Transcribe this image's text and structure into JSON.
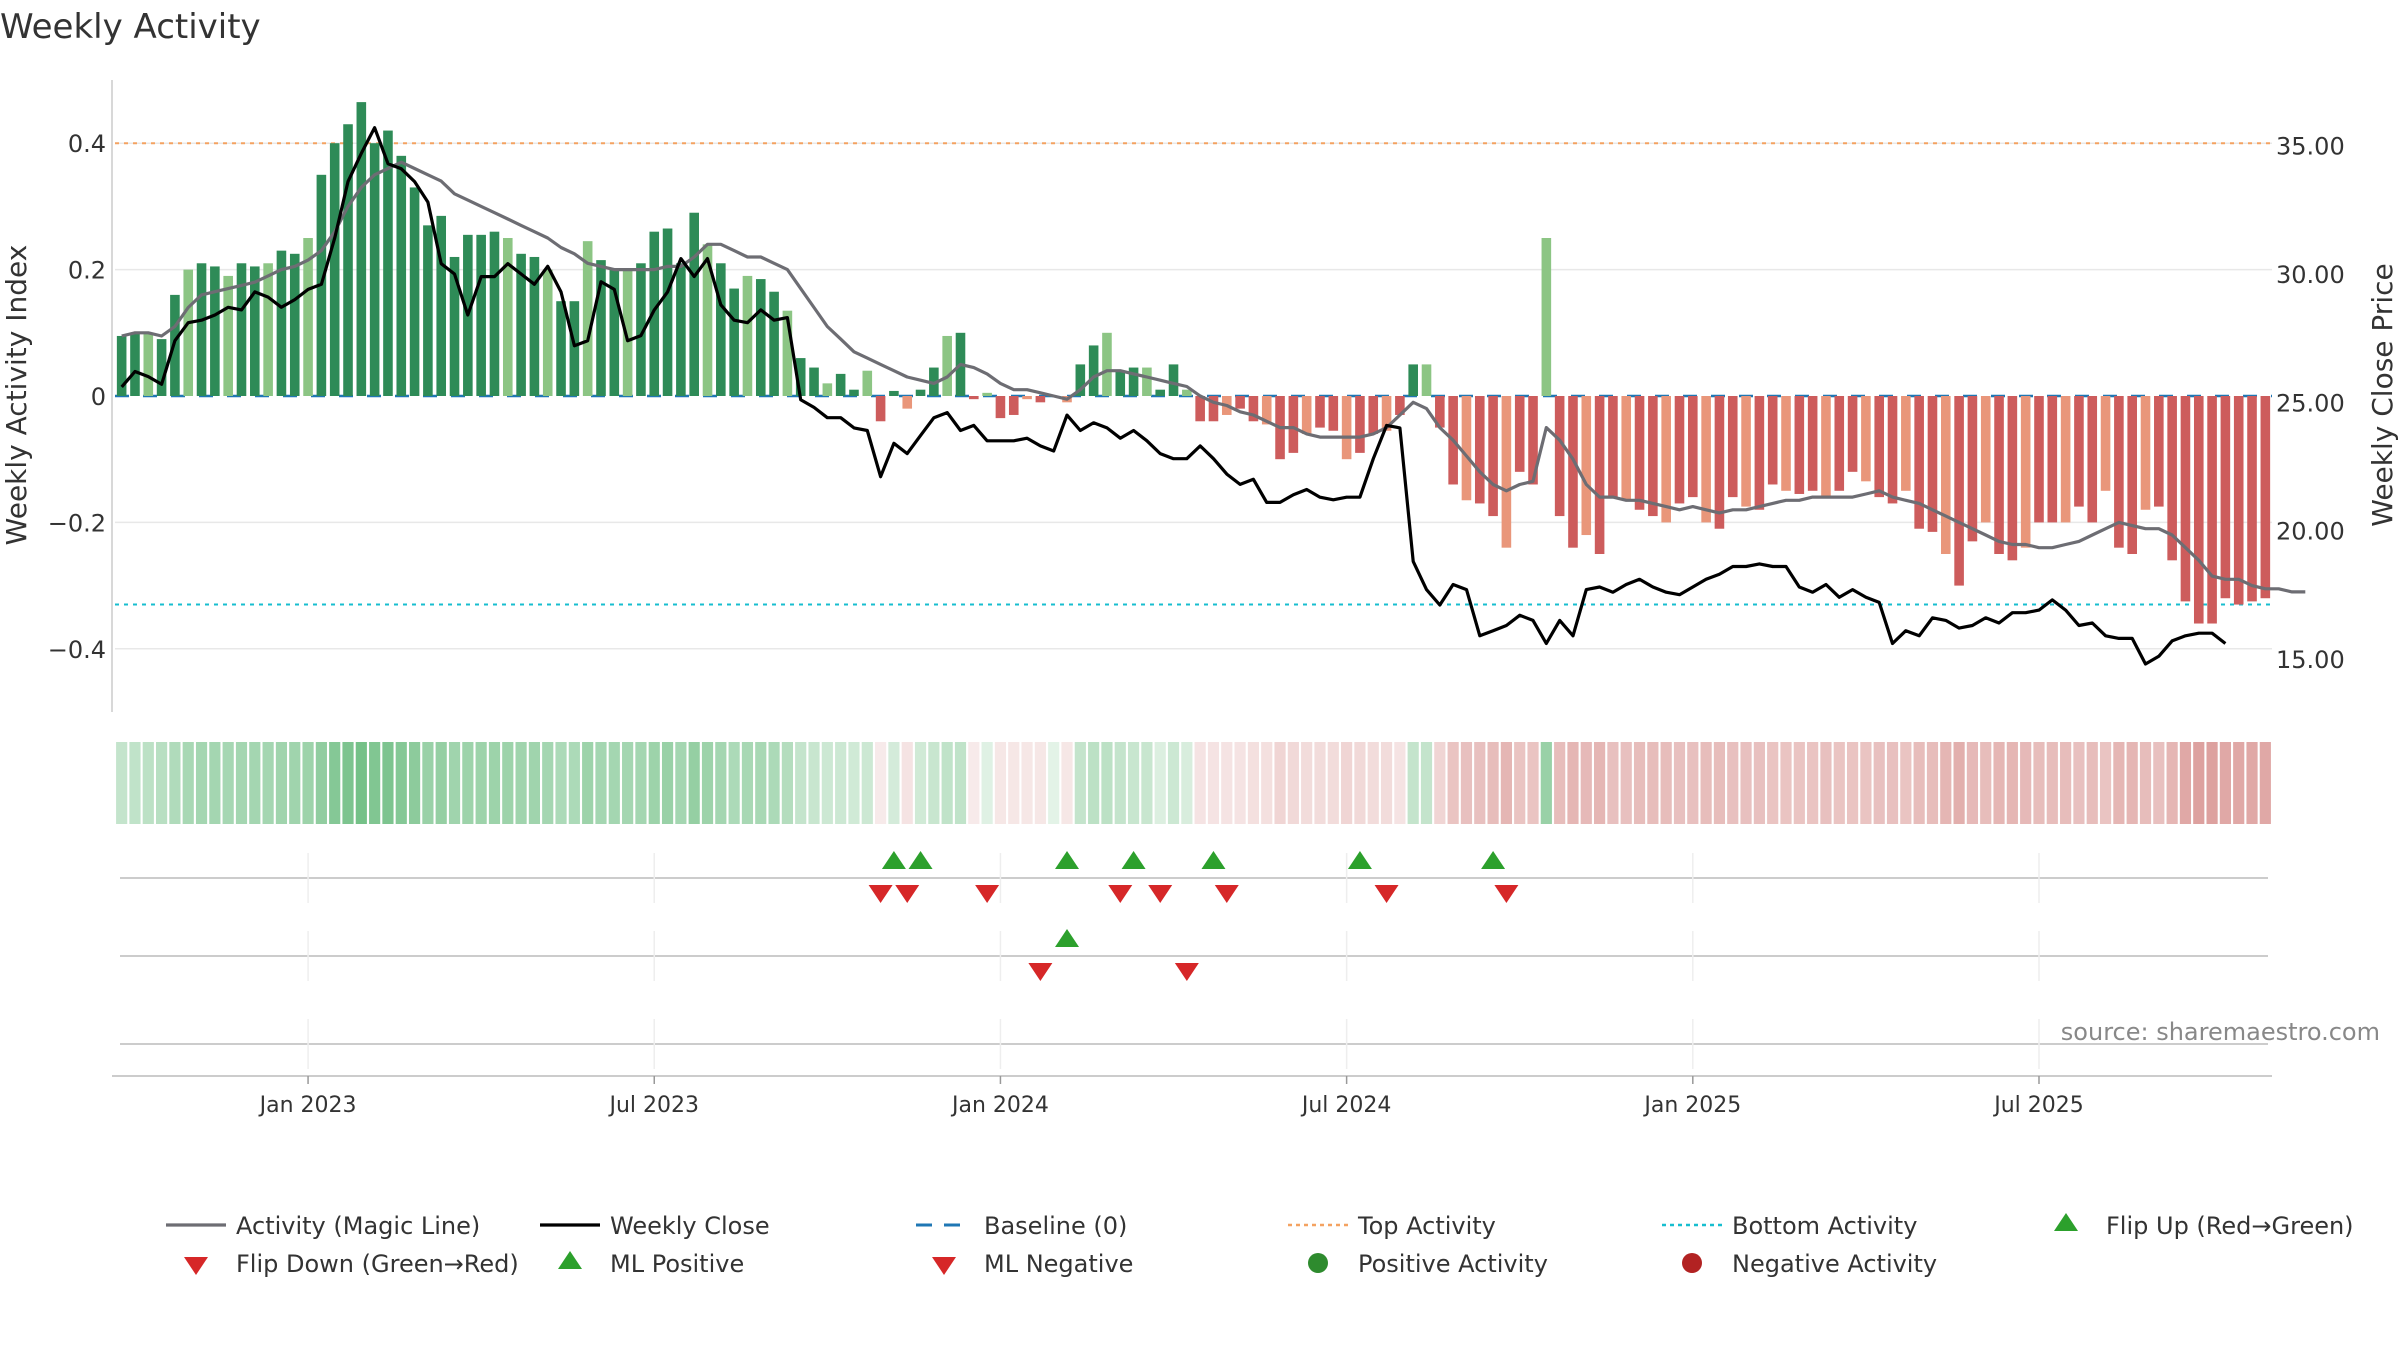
{
  "chart_data": {
    "type": "bar",
    "title": "Weekly Activity",
    "ylabel_left": "Weekly Activity Index",
    "ylabel_right": "Weekly Close Price",
    "source": "source: sharemaestro.com",
    "left_ylim": [
      -0.5,
      0.5
    ],
    "left_ticks": [
      {
        "v": 0.4,
        "label": "0.4"
      },
      {
        "v": 0.2,
        "label": "0.2"
      },
      {
        "v": 0.0,
        "label": "0"
      },
      {
        "v": -0.2,
        "label": "−0.2"
      },
      {
        "v": -0.4,
        "label": "−0.4"
      }
    ],
    "right_ylim": [
      12.93,
      37.56
    ],
    "right_ticks": [
      {
        "v": 35,
        "label": "35.00"
      },
      {
        "v": 30,
        "label": "30.00"
      },
      {
        "v": 25,
        "label": "25.00"
      },
      {
        "v": 20,
        "label": "20.00"
      },
      {
        "v": 15,
        "label": "15.00"
      }
    ],
    "x_ticks": [
      {
        "week": 14.5,
        "label": "Jan 2023"
      },
      {
        "week": 40.5,
        "label": "Jul 2023"
      },
      {
        "week": 66.5,
        "label": "Jan 2024"
      },
      {
        "week": 92.5,
        "label": "Jul 2024"
      },
      {
        "week": 118.5,
        "label": "Jan 2025"
      },
      {
        "week": 144.5,
        "label": "Jul 2025"
      }
    ],
    "top_activity": 0.4,
    "bottom_activity": -0.33,
    "activity_bars": [
      0.095,
      0.1,
      0.1,
      0.09,
      0.16,
      0.2,
      0.21,
      0.205,
      0.19,
      0.21,
      0.205,
      0.21,
      0.23,
      0.225,
      0.25,
      0.35,
      0.4,
      0.43,
      0.465,
      0.4,
      0.42,
      0.38,
      0.33,
      0.27,
      0.285,
      0.22,
      0.255,
      0.255,
      0.26,
      0.25,
      0.225,
      0.22,
      0.2,
      0.15,
      0.15,
      0.245,
      0.215,
      0.2,
      0.2,
      0.21,
      0.26,
      0.265,
      0.21,
      0.29,
      0.24,
      0.21,
      0.17,
      0.19,
      0.185,
      0.165,
      0.135,
      0.06,
      0.045,
      0.02,
      0.035,
      0.01,
      0.04,
      -0.04,
      0.008,
      -0.02,
      0.01,
      0.045,
      0.095,
      0.1,
      -0.005,
      0.005,
      -0.035,
      -0.03,
      -0.005,
      -0.01,
      0,
      -0.01,
      0.05,
      0.08,
      0.1,
      0.04,
      0.045,
      0.045,
      0.01,
      0.05,
      0.01,
      -0.04,
      -0.04,
      -0.03,
      -0.02,
      -0.04,
      -0.045,
      -0.1,
      -0.09,
      -0.06,
      -0.05,
      -0.055,
      -0.1,
      -0.09,
      -0.06,
      -0.055,
      -0.03,
      0.05,
      0.05,
      -0.05,
      -0.14,
      -0.165,
      -0.17,
      -0.19,
      -0.24,
      -0.12,
      -0.14,
      0.25,
      -0.19,
      -0.24,
      -0.22,
      -0.25,
      -0.16,
      -0.165,
      -0.18,
      -0.19,
      -0.2,
      -0.17,
      -0.16,
      -0.2,
      -0.21,
      -0.16,
      -0.175,
      -0.18,
      -0.14,
      -0.15,
      -0.155,
      -0.15,
      -0.16,
      -0.15,
      -0.12,
      -0.135,
      -0.16,
      -0.17,
      -0.15,
      -0.21,
      -0.215,
      -0.25,
      -0.3,
      -0.23,
      -0.2,
      -0.25,
      -0.26,
      -0.24,
      -0.2,
      -0.2,
      -0.2,
      -0.175,
      -0.2,
      -0.15,
      -0.24,
      -0.25,
      -0.18,
      -0.175,
      -0.26,
      -0.325,
      -0.36,
      -0.36,
      -0.32,
      -0.33,
      -0.325,
      -0.32
    ],
    "magic_line": [
      0.095,
      0.1,
      0.1,
      0.095,
      0.11,
      0.14,
      0.16,
      0.165,
      0.17,
      0.175,
      0.18,
      0.19,
      0.2,
      0.205,
      0.215,
      0.23,
      0.26,
      0.3,
      0.33,
      0.35,
      0.36,
      0.37,
      0.36,
      0.35,
      0.34,
      0.32,
      0.31,
      0.3,
      0.29,
      0.28,
      0.27,
      0.26,
      0.25,
      0.235,
      0.225,
      0.21,
      0.205,
      0.2,
      0.2,
      0.2,
      0.2,
      0.205,
      0.205,
      0.22,
      0.24,
      0.24,
      0.23,
      0.22,
      0.22,
      0.21,
      0.2,
      0.17,
      0.14,
      0.11,
      0.09,
      0.07,
      0.06,
      0.05,
      0.04,
      0.03,
      0.025,
      0.02,
      0.03,
      0.05,
      0.045,
      0.035,
      0.02,
      0.01,
      0.01,
      0.005,
      0,
      -0.005,
      0.01,
      0.03,
      0.04,
      0.04,
      0.035,
      0.03,
      0.025,
      0.02,
      0.015,
      0,
      -0.01,
      -0.015,
      -0.025,
      -0.03,
      -0.04,
      -0.05,
      -0.05,
      -0.06,
      -0.065,
      -0.065,
      -0.065,
      -0.065,
      -0.06,
      -0.05,
      -0.03,
      -0.01,
      -0.02,
      -0.05,
      -0.07,
      -0.095,
      -0.12,
      -0.14,
      -0.15,
      -0.14,
      -0.135,
      -0.05,
      -0.07,
      -0.1,
      -0.14,
      -0.16,
      -0.16,
      -0.165,
      -0.165,
      -0.17,
      -0.175,
      -0.18,
      -0.175,
      -0.18,
      -0.185,
      -0.18,
      -0.18,
      -0.175,
      -0.17,
      -0.165,
      -0.165,
      -0.16,
      -0.16,
      -0.16,
      -0.16,
      -0.155,
      -0.15,
      -0.16,
      -0.165,
      -0.17,
      -0.18,
      -0.19,
      -0.2,
      -0.21,
      -0.22,
      -0.23,
      -0.235,
      -0.235,
      -0.24,
      -0.24,
      -0.235,
      -0.23,
      -0.22,
      -0.21,
      -0.2,
      -0.205,
      -0.21,
      -0.21,
      -0.22,
      -0.24,
      -0.26,
      -0.285,
      -0.29,
      -0.29,
      -0.3,
      -0.305,
      -0.305,
      -0.31,
      -0.31
    ],
    "weekly_close": [
      25.6,
      26.2,
      26.0,
      25.7,
      27.4,
      28.1,
      28.2,
      28.4,
      28.7,
      28.6,
      29.3,
      29.1,
      28.7,
      29.0,
      29.4,
      29.6,
      31.4,
      33.6,
      34.7,
      35.7,
      34.3,
      34.1,
      33.6,
      32.8,
      30.4,
      30.0,
      28.4,
      29.9,
      29.9,
      30.4,
      30.0,
      29.6,
      30.3,
      29.3,
      27.2,
      27.4,
      29.7,
      29.4,
      27.4,
      27.6,
      28.6,
      29.3,
      30.6,
      29.9,
      30.6,
      28.8,
      28.2,
      28.1,
      28.6,
      28.2,
      28.3,
      25.1,
      24.8,
      24.4,
      24.4,
      24.0,
      23.9,
      22.1,
      23.4,
      23.0,
      23.7,
      24.4,
      24.6,
      23.9,
      24.1,
      23.5,
      23.5,
      23.5,
      23.6,
      23.3,
      23.1,
      24.5,
      23.9,
      24.2,
      24.0,
      23.6,
      23.9,
      23.5,
      23.0,
      22.8,
      22.8,
      23.3,
      22.8,
      22.2,
      21.8,
      22.0,
      21.1,
      21.1,
      21.4,
      21.6,
      21.3,
      21.2,
      21.3,
      21.3,
      22.8,
      24.1,
      24.0,
      18.8,
      17.7,
      17.1,
      17.9,
      17.7,
      15.9,
      16.1,
      16.3,
      16.7,
      16.5,
      15.6,
      16.5,
      15.9,
      17.7,
      17.8,
      17.6,
      17.9,
      18.1,
      17.8,
      17.6,
      17.5,
      17.8,
      18.1,
      18.3,
      18.6,
      18.6,
      18.7,
      18.6,
      18.6,
      17.8,
      17.6,
      17.9,
      17.4,
      17.7,
      17.4,
      17.2,
      15.6,
      16.1,
      15.9,
      16.6,
      16.5,
      16.2,
      16.3,
      16.6,
      16.4,
      16.8,
      16.8,
      16.9,
      17.3,
      16.9,
      16.3,
      16.4,
      15.9,
      15.8,
      15.8,
      14.8,
      15.1,
      15.7,
      15.9,
      16.0,
      16.0,
      15.6
    ],
    "regime_shade": [
      0.3,
      0.32,
      0.34,
      0.36,
      0.4,
      0.44,
      0.46,
      0.46,
      0.45,
      0.46,
      0.46,
      0.46,
      0.48,
      0.48,
      0.5,
      0.56,
      0.62,
      0.66,
      0.7,
      0.64,
      0.66,
      0.62,
      0.58,
      0.52,
      0.54,
      0.48,
      0.5,
      0.5,
      0.5,
      0.5,
      0.48,
      0.48,
      0.46,
      0.42,
      0.42,
      0.5,
      0.46,
      0.46,
      0.46,
      0.46,
      0.5,
      0.52,
      0.46,
      0.54,
      0.5,
      0.46,
      0.42,
      0.44,
      0.44,
      0.42,
      0.38,
      0.3,
      0.28,
      0.26,
      0.26,
      0.24,
      0.26,
      0.12,
      0.22,
      0.16,
      0.24,
      0.28,
      0.32,
      0.32,
      0.12,
      0.16,
      0.14,
      0.14,
      0.14,
      0.14,
      0.14,
      0.14,
      0.3,
      0.34,
      0.34,
      0.3,
      0.28,
      0.28,
      0.18,
      0.26,
      0.2,
      0.16,
      0.16,
      0.16,
      0.16,
      0.18,
      0.18,
      0.24,
      0.22,
      0.2,
      0.2,
      0.2,
      0.24,
      0.22,
      0.2,
      0.2,
      0.16,
      0.3,
      0.3,
      0.24,
      0.34,
      0.36,
      0.36,
      0.38,
      0.42,
      0.34,
      0.34,
      0.52,
      0.38,
      0.42,
      0.4,
      0.42,
      0.36,
      0.36,
      0.38,
      0.38,
      0.38,
      0.36,
      0.36,
      0.38,
      0.38,
      0.36,
      0.36,
      0.36,
      0.34,
      0.34,
      0.34,
      0.34,
      0.36,
      0.34,
      0.34,
      0.34,
      0.36,
      0.36,
      0.34,
      0.38,
      0.38,
      0.42,
      0.46,
      0.4,
      0.38,
      0.42,
      0.42,
      0.4,
      0.38,
      0.38,
      0.38,
      0.36,
      0.38,
      0.34,
      0.42,
      0.42,
      0.38,
      0.36,
      0.42,
      0.5,
      0.54,
      0.54,
      0.5,
      0.5,
      0.5,
      0.5
    ],
    "flip_up_weeks": [
      58.5,
      60.5,
      71.5,
      76.5,
      82.5,
      93.5,
      103.5
    ],
    "flip_down_weeks": [
      57.5,
      59.5,
      65.5,
      75.5,
      78.5,
      83.5,
      95.5,
      104.5
    ],
    "ml_positive_weeks": [
      71.5
    ],
    "ml_negative_weeks": [
      69.5,
      80.5
    ],
    "legend": [
      {
        "name": "Activity (Magic Line)",
        "kind": "line",
        "color": "#6d6d73"
      },
      {
        "name": "Weekly Close",
        "kind": "line",
        "color": "#000000"
      },
      {
        "name": "Baseline (0)",
        "kind": "dash",
        "color": "#1f77b4"
      },
      {
        "name": "Top Activity",
        "kind": "dot",
        "color": "#f4a261"
      },
      {
        "name": "Bottom Activity",
        "kind": "dot",
        "color": "#17becf"
      },
      {
        "name": "Flip Up (Red→Green)",
        "kind": "tri-up",
        "color": "#2ca02c"
      },
      {
        "name": "Flip Down (Green→Red)",
        "kind": "tri-down",
        "color": "#d62728"
      },
      {
        "name": "ML Positive",
        "kind": "tri-up",
        "color": "#2ca02c"
      },
      {
        "name": "ML Negative",
        "kind": "tri-down",
        "color": "#d62728"
      },
      {
        "name": "Positive Activity",
        "kind": "circle",
        "color": "#2e8b2e"
      },
      {
        "name": "Negative Activity",
        "kind": "circle",
        "color": "#b22222"
      }
    ],
    "colors": {
      "pos_dark": "#2e8b57",
      "pos_light": "#8cc584",
      "neg_dark": "#cd5c5c",
      "neg_light": "#e9967a",
      "magic": "#6d6d73",
      "close": "#000000",
      "baseline": "#1f77b4",
      "top": "#f4a261",
      "bottom": "#17becf",
      "up": "#2ca02c",
      "down": "#d62728",
      "strip_pos": "#3aa655",
      "strip_neg": "#c0504d"
    }
  }
}
